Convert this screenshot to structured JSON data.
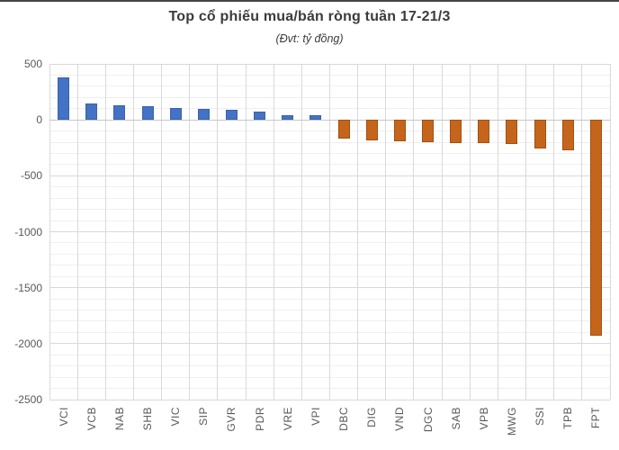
{
  "window": {
    "top_border_color": "#464646",
    "background": "#ffffff"
  },
  "chart_data": {
    "type": "bar",
    "title": "Top cổ phiếu mua/bán ròng tuần 17-21/3",
    "subtitle": "(Đvt: tỷ đồng)",
    "unit_note": "Đvt: tỷ đồng",
    "categories": [
      "VCI",
      "VCB",
      "NAB",
      "SHB",
      "VIC",
      "SIP",
      "GVR",
      "PDR",
      "VRE",
      "VPI",
      "DBC",
      "DIG",
      "VND",
      "DGC",
      "SAB",
      "VPB",
      "MWG",
      "SSI",
      "TPB",
      "FPT"
    ],
    "values": [
      380,
      150,
      130,
      125,
      105,
      100,
      90,
      75,
      45,
      40,
      -170,
      -180,
      -195,
      -200,
      -205,
      -210,
      -215,
      -255,
      -270,
      -1930
    ],
    "xlabel": "",
    "ylabel": "",
    "ylim": [
      -2500,
      500
    ],
    "y_major_step": 500,
    "y_minor_step": 100,
    "y_tick_labels": [
      "500",
      "0",
      "-500",
      "-1000",
      "-1500",
      "-2000",
      "-2500"
    ],
    "grid": "major-and-minor-horizontal-plus-vertical-category-lines",
    "legend": "none",
    "colors": {
      "positive_fill": "#4472C4",
      "positive_border": "#3A63AC",
      "negative_fill": "#C5651B",
      "negative_border": "#A1510F",
      "grid_major": "#D9D9D9",
      "grid_minor": "#EFEFEF",
      "zero_line": "#C6C6C6",
      "axis_label": "#595959",
      "title_color": "#3B3B3B"
    }
  }
}
